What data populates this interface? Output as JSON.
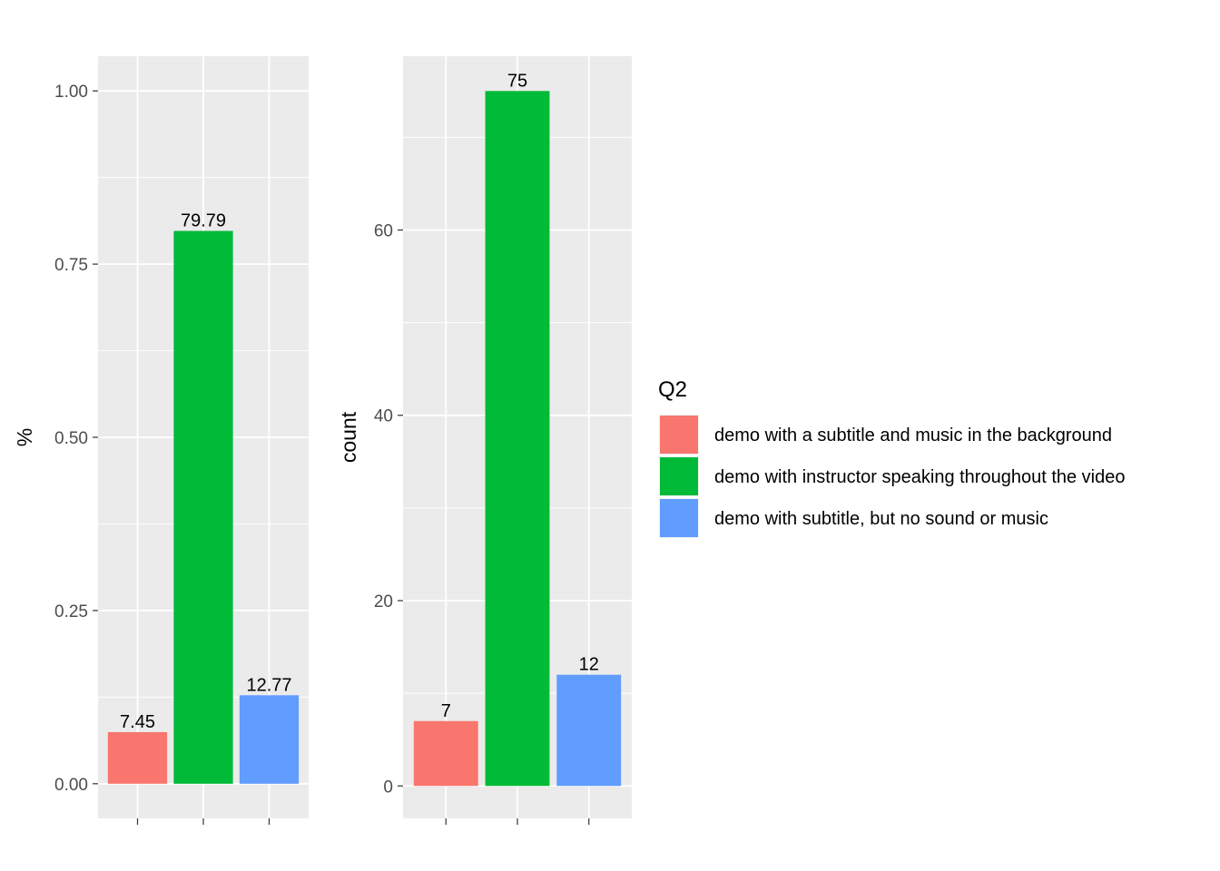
{
  "chart_data": [
    {
      "type": "bar",
      "categories": [
        "demo with a subtitle and music in the background",
        "demo with instructor speaking throughout the video",
        "demo with subtitle, but no sound or music"
      ],
      "values": [
        0.0745,
        0.7979,
        0.1277
      ],
      "value_labels": [
        "7.45",
        "79.79",
        "12.77"
      ],
      "colors": [
        "#F8766D",
        "#00BA38",
        "#619CFF"
      ],
      "ylabel": "%",
      "ylim": [
        -0.05,
        1.05
      ],
      "yticks": [
        0.0,
        0.25,
        0.5,
        0.75,
        1.0
      ],
      "ytick_labels": [
        "0.00",
        "0.25",
        "0.50",
        "0.75",
        "1.00"
      ],
      "grid": true
    },
    {
      "type": "bar",
      "categories": [
        "demo with a subtitle and music in the background",
        "demo with instructor speaking throughout the video",
        "demo with subtitle, but no sound or music"
      ],
      "values": [
        7,
        75,
        12
      ],
      "value_labels": [
        "7",
        "75",
        "12"
      ],
      "colors": [
        "#F8766D",
        "#00BA38",
        "#619CFF"
      ],
      "ylabel": "count",
      "ylim": [
        -3.5,
        78.75
      ],
      "yticks": [
        0,
        20,
        40,
        60
      ],
      "ytick_labels": [
        "0",
        "20",
        "40",
        "60"
      ],
      "grid": true
    }
  ],
  "legend": {
    "title": "Q2",
    "placement": "right",
    "items": [
      {
        "label": "demo with a subtitle and music in the background",
        "color": "#F8766D"
      },
      {
        "label": "demo with instructor speaking throughout the video",
        "color": "#00BA38"
      },
      {
        "label": "demo with subtitle, but no sound or music",
        "color": "#619CFF"
      }
    ]
  }
}
